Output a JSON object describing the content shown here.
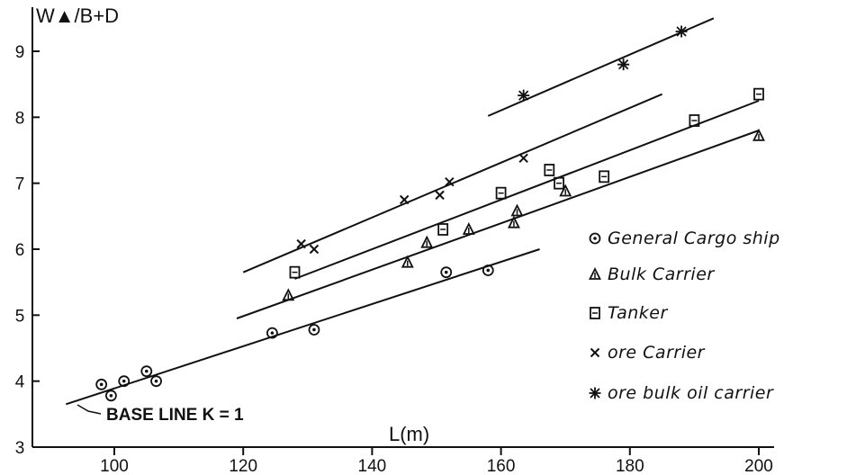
{
  "chart_data": {
    "type": "scatter",
    "title": "",
    "xlabel": "L(m)",
    "ylabel": "W▲/B+D",
    "xlim": [
      85,
      203
    ],
    "ylim": [
      3,
      9.6
    ],
    "xticks": [
      100,
      120,
      140,
      160,
      180,
      200
    ],
    "yticks": [
      3,
      4,
      5,
      6,
      7,
      8,
      9
    ],
    "grid": false,
    "legend_position": "right",
    "series": [
      {
        "name": "General Cargo ship",
        "marker": "circle",
        "points": [
          [
            98,
            3.95
          ],
          [
            99.5,
            3.78
          ],
          [
            101.5,
            4.0
          ],
          [
            105,
            4.15
          ],
          [
            106.5,
            4.0
          ],
          [
            124.5,
            4.73
          ],
          [
            131,
            4.78
          ],
          [
            151.5,
            5.65
          ],
          [
            158,
            5.68
          ]
        ]
      },
      {
        "name": "Bulk Carrier",
        "marker": "triangle",
        "points": [
          [
            127,
            5.3
          ],
          [
            145.5,
            5.8
          ],
          [
            148.5,
            6.1
          ],
          [
            155,
            6.3
          ],
          [
            162,
            6.4
          ],
          [
            162.5,
            6.58
          ],
          [
            170,
            6.88
          ],
          [
            200,
            7.72
          ]
        ]
      },
      {
        "name": "Tanker",
        "marker": "square",
        "points": [
          [
            128,
            5.65
          ],
          [
            151,
            6.3
          ],
          [
            160,
            6.85
          ],
          [
            167.5,
            7.2
          ],
          [
            169,
            7.0
          ],
          [
            176,
            7.1
          ],
          [
            190,
            7.95
          ],
          [
            200,
            8.35
          ]
        ]
      },
      {
        "name": "ore Carrier",
        "marker": "x",
        "points": [
          [
            129,
            6.08
          ],
          [
            131,
            6.0
          ],
          [
            145,
            6.75
          ],
          [
            150.5,
            6.82
          ],
          [
            152,
            7.02
          ],
          [
            163.5,
            7.38
          ]
        ]
      },
      {
        "name": "ore bulk oil carrier",
        "marker": "star",
        "points": [
          [
            163.5,
            8.33
          ],
          [
            179,
            8.8
          ],
          [
            188,
            9.3
          ]
        ]
      }
    ],
    "lines": [
      {
        "name": "base",
        "points": [
          [
            92.5,
            3.65
          ],
          [
            166,
            6.0
          ]
        ]
      },
      {
        "name": "bulk",
        "points": [
          [
            119,
            4.95
          ],
          [
            200,
            7.8
          ]
        ]
      },
      {
        "name": "tanker",
        "points": [
          [
            128,
            5.55
          ],
          [
            200,
            8.25
          ]
        ]
      },
      {
        "name": "ore",
        "points": [
          [
            120,
            5.65
          ],
          [
            185,
            8.35
          ]
        ]
      },
      {
        "name": "obo",
        "points": [
          [
            158,
            8.02
          ],
          [
            193,
            9.5
          ]
        ]
      }
    ],
    "annotation": {
      "text": "BASE LINE K = 1"
    }
  }
}
